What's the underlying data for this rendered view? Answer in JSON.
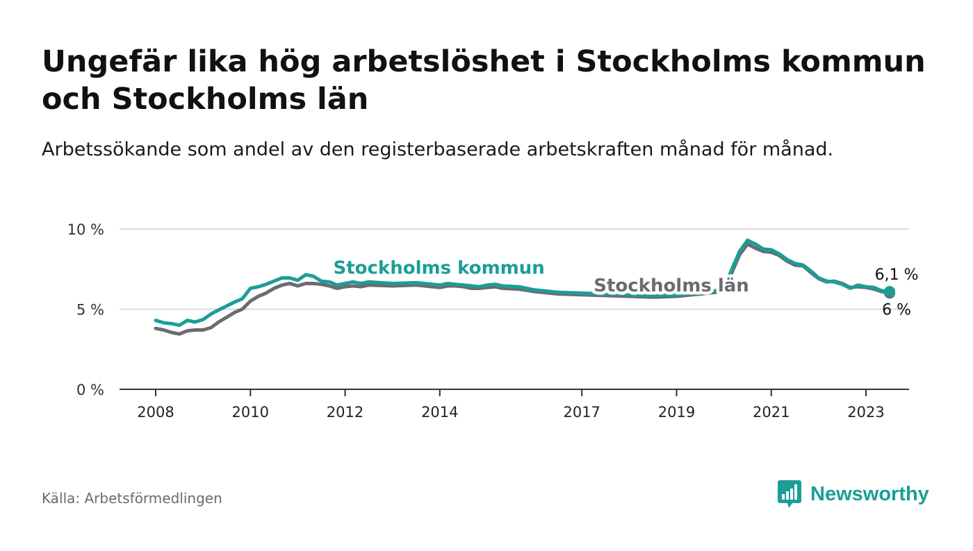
{
  "title": "Ungefär lika hög arbetslöshet i Stockholms kommun och Stockholms län",
  "subtitle": "Arbetssökande som andel av den registerbaserade arbetskraften månad för månad.",
  "source": "Källa: Arbetsförmedlingen",
  "brand": {
    "name": "Newsworthy",
    "color": "#1a9e96"
  },
  "colors": {
    "kommun": "#1a9e96",
    "lan": "#6b6b70",
    "grid": "#d9d9d9",
    "axis": "#333333"
  },
  "chart_data": {
    "type": "line",
    "title": "Ungefär lika hög arbetslöshet i Stockholms kommun och Stockholms län",
    "xlabel": "",
    "ylabel": "",
    "ylim": [
      0,
      10
    ],
    "xlim": [
      2008,
      2024.5
    ],
    "y_ticks": [
      0,
      5,
      10
    ],
    "y_tick_labels": [
      "0 %",
      "5 %",
      "10 %"
    ],
    "x_ticks": [
      2008,
      2010,
      2012,
      2014,
      2017,
      2019,
      2021,
      2023
    ],
    "x_tick_labels": [
      "2008",
      "2010",
      "2012",
      "2014",
      "2017",
      "2019",
      "2021",
      "2023"
    ],
    "x_positions": {
      "2008": 2008.0,
      "2010": 2010.0,
      "2012": 2012.0,
      "2014": 2014.0,
      "2017": 2017.0,
      "2019": 2019.0,
      "2021": 2021.0,
      "2023": 2023.0
    },
    "grid": true,
    "series": [
      {
        "name": "Stockholms län",
        "label": "Stockholms län",
        "end_label": "6 %",
        "points": [
          [
            2008.0,
            3.8
          ],
          [
            2008.17,
            3.7
          ],
          [
            2008.33,
            3.55
          ],
          [
            2008.5,
            3.45
          ],
          [
            2008.67,
            3.65
          ],
          [
            2008.83,
            3.7
          ],
          [
            2009.0,
            3.7
          ],
          [
            2009.17,
            3.85
          ],
          [
            2009.33,
            4.2
          ],
          [
            2009.5,
            4.5
          ],
          [
            2009.67,
            4.8
          ],
          [
            2009.83,
            5.0
          ],
          [
            2010.0,
            5.5
          ],
          [
            2010.17,
            5.8
          ],
          [
            2010.33,
            6.0
          ],
          [
            2010.5,
            6.3
          ],
          [
            2010.67,
            6.5
          ],
          [
            2010.83,
            6.6
          ],
          [
            2011.0,
            6.45
          ],
          [
            2011.17,
            6.6
          ],
          [
            2011.33,
            6.6
          ],
          [
            2011.5,
            6.55
          ],
          [
            2011.67,
            6.45
          ],
          [
            2011.83,
            6.3
          ],
          [
            2012.0,
            6.4
          ],
          [
            2012.17,
            6.45
          ],
          [
            2012.33,
            6.4
          ],
          [
            2012.5,
            6.5
          ],
          [
            2013.0,
            6.45
          ],
          [
            2013.5,
            6.5
          ],
          [
            2014.0,
            6.35
          ],
          [
            2014.17,
            6.45
          ],
          [
            2014.33,
            6.45
          ],
          [
            2014.5,
            6.4
          ],
          [
            2014.67,
            6.3
          ],
          [
            2014.83,
            6.3
          ],
          [
            2015.0,
            6.35
          ],
          [
            2015.17,
            6.4
          ],
          [
            2015.33,
            6.3
          ],
          [
            2015.67,
            6.25
          ],
          [
            2016.0,
            6.1
          ],
          [
            2016.5,
            5.95
          ],
          [
            2017.0,
            5.9
          ],
          [
            2018.0,
            5.8
          ],
          [
            2018.5,
            5.75
          ],
          [
            2019.0,
            5.8
          ],
          [
            2019.5,
            5.95
          ],
          [
            2019.83,
            6.05
          ],
          [
            2020.0,
            6.2
          ],
          [
            2020.17,
            7.3
          ],
          [
            2020.33,
            8.4
          ],
          [
            2020.5,
            9.05
          ],
          [
            2020.67,
            8.8
          ],
          [
            2020.83,
            8.6
          ],
          [
            2021.0,
            8.55
          ],
          [
            2021.17,
            8.35
          ],
          [
            2021.33,
            8.0
          ],
          [
            2021.5,
            7.75
          ],
          [
            2021.67,
            7.7
          ],
          [
            2021.83,
            7.3
          ],
          [
            2022.0,
            6.9
          ],
          [
            2022.17,
            6.7
          ],
          [
            2022.33,
            6.75
          ],
          [
            2022.5,
            6.6
          ],
          [
            2022.67,
            6.35
          ],
          [
            2022.83,
            6.4
          ],
          [
            2023.0,
            6.35
          ],
          [
            2023.17,
            6.25
          ],
          [
            2023.33,
            6.1
          ],
          [
            2023.5,
            6.0
          ]
        ]
      },
      {
        "name": "Stockholms kommun",
        "label": "Stockholms kommun",
        "end_label": "6,1 %",
        "points": [
          [
            2008.0,
            4.3
          ],
          [
            2008.17,
            4.15
          ],
          [
            2008.33,
            4.1
          ],
          [
            2008.5,
            4.0
          ],
          [
            2008.67,
            4.3
          ],
          [
            2008.83,
            4.2
          ],
          [
            2009.0,
            4.35
          ],
          [
            2009.17,
            4.7
          ],
          [
            2009.33,
            4.95
          ],
          [
            2009.5,
            5.2
          ],
          [
            2009.67,
            5.45
          ],
          [
            2009.83,
            5.65
          ],
          [
            2010.0,
            6.3
          ],
          [
            2010.17,
            6.4
          ],
          [
            2010.33,
            6.55
          ],
          [
            2010.5,
            6.75
          ],
          [
            2010.67,
            6.95
          ],
          [
            2010.83,
            6.95
          ],
          [
            2011.0,
            6.8
          ],
          [
            2011.17,
            7.15
          ],
          [
            2011.33,
            7.05
          ],
          [
            2011.5,
            6.75
          ],
          [
            2011.67,
            6.7
          ],
          [
            2011.83,
            6.5
          ],
          [
            2012.0,
            6.6
          ],
          [
            2012.17,
            6.7
          ],
          [
            2012.33,
            6.6
          ],
          [
            2012.5,
            6.7
          ],
          [
            2013.0,
            6.6
          ],
          [
            2013.5,
            6.65
          ],
          [
            2014.0,
            6.5
          ],
          [
            2014.17,
            6.6
          ],
          [
            2014.33,
            6.55
          ],
          [
            2014.5,
            6.5
          ],
          [
            2014.67,
            6.45
          ],
          [
            2014.83,
            6.4
          ],
          [
            2015.0,
            6.5
          ],
          [
            2015.17,
            6.55
          ],
          [
            2015.33,
            6.45
          ],
          [
            2015.67,
            6.4
          ],
          [
            2016.0,
            6.2
          ],
          [
            2016.5,
            6.05
          ],
          [
            2017.0,
            6.0
          ],
          [
            2018.0,
            5.9
          ],
          [
            2018.5,
            5.85
          ],
          [
            2019.0,
            5.9
          ],
          [
            2019.5,
            6.0
          ],
          [
            2019.83,
            6.15
          ],
          [
            2020.0,
            6.3
          ],
          [
            2020.17,
            7.5
          ],
          [
            2020.33,
            8.6
          ],
          [
            2020.5,
            9.3
          ],
          [
            2020.67,
            9.05
          ],
          [
            2020.83,
            8.75
          ],
          [
            2021.0,
            8.7
          ],
          [
            2021.17,
            8.45
          ],
          [
            2021.33,
            8.1
          ],
          [
            2021.5,
            7.85
          ],
          [
            2021.67,
            7.75
          ],
          [
            2021.83,
            7.4
          ],
          [
            2022.0,
            6.95
          ],
          [
            2022.17,
            6.75
          ],
          [
            2022.33,
            6.7
          ],
          [
            2022.5,
            6.55
          ],
          [
            2022.67,
            6.3
          ],
          [
            2022.83,
            6.5
          ],
          [
            2023.0,
            6.4
          ],
          [
            2023.17,
            6.35
          ],
          [
            2023.33,
            6.15
          ],
          [
            2023.5,
            6.1
          ]
        ]
      }
    ],
    "annotations": [
      {
        "series": "Stockholms kommun",
        "text": "Stockholms kommun",
        "x": 2011.75,
        "y": 7.2
      },
      {
        "series": "Stockholms län",
        "text": "Stockholms län",
        "x": 2017.25,
        "y": 6.1
      }
    ]
  }
}
